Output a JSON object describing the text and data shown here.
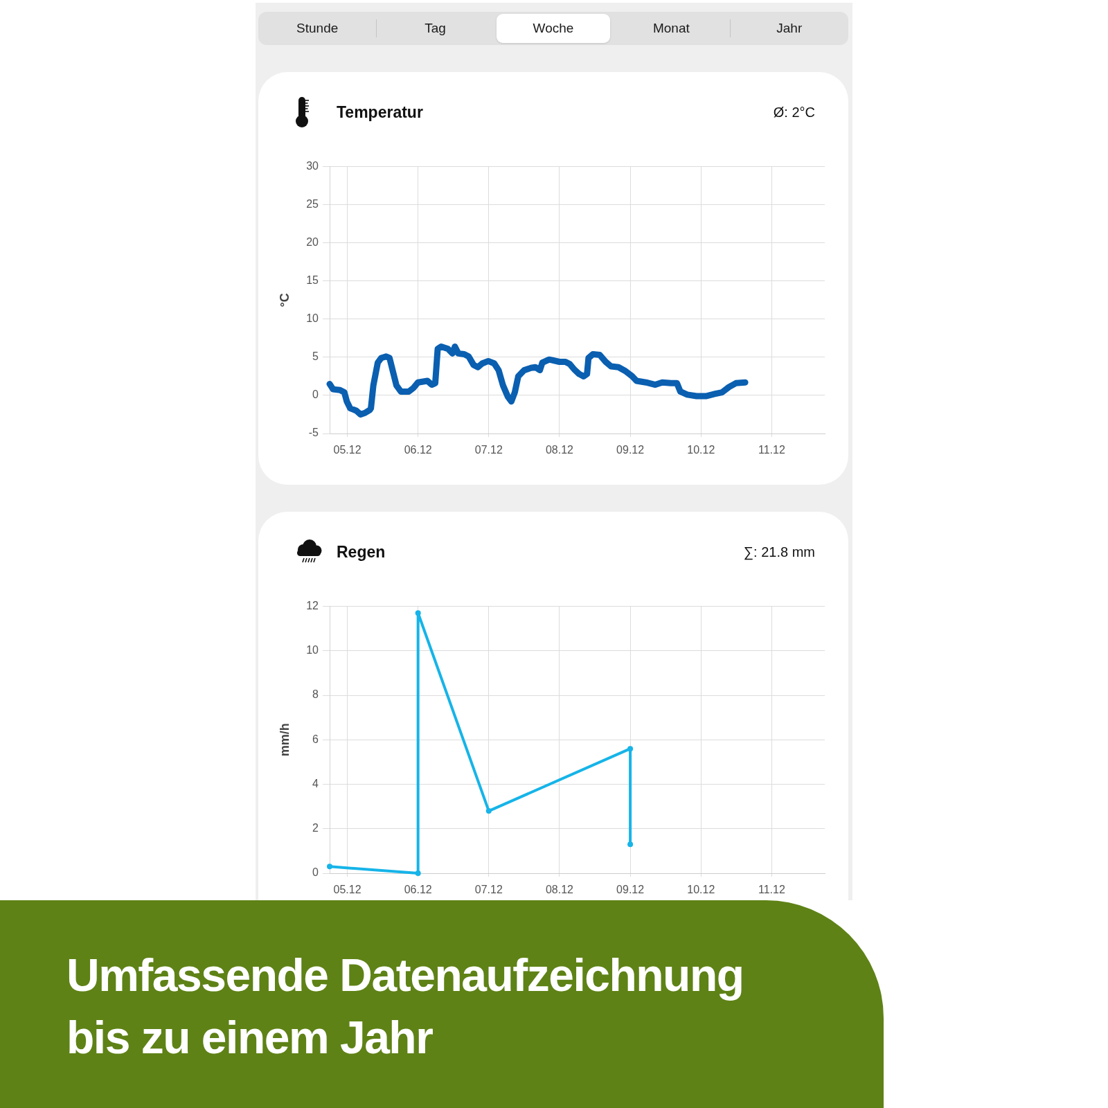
{
  "chart_data": [
    {
      "type": "line",
      "title": "Temperatur",
      "ylabel": "°C",
      "annotations": [
        "Stunde",
        "Tag",
        "Woche",
        "Monat",
        "Jahr",
        "Ø: 2°C"
      ],
      "x": [
        "--12-04T18:00",
        "--12-04T19:10",
        "--12-04T21:30",
        "--12-04T23:00",
        "--12-04T23:50",
        "--12-05T01:00",
        "--12-05T03:00",
        "--12-05T04:30",
        "--12-05T06:00",
        "--12-05T07:40",
        "--12-05T08:00",
        "--12-05T08:50",
        "--12-05T10:20",
        "--12-05T11:30",
        "--12-05T13:10",
        "--12-05T14:20",
        "--12-05T15:30",
        "--12-05T16:40",
        "--12-05T18:10",
        "--12-05T20:50",
        "--12-05T22:30",
        "--12-06T00:00",
        "--12-06T03:10",
        "--12-06T04:40",
        "--12-06T05:50",
        "--12-06T06:40",
        "--12-06T07:50",
        "--12-06T10:10",
        "--12-06T11:40",
        "--12-06T12:30",
        "--12-06T13:40",
        "--12-06T15:40",
        "--12-06T17:10",
        "--12-06T18:50",
        "--12-06T20:20",
        "--12-06T21:50",
        "--12-06T23:50",
        "--12-07T01:50",
        "--12-07T03:20",
        "--12-07T04:50",
        "--12-07T06:30",
        "--12-07T07:40",
        "--12-07T08:50",
        "--12-07T10:00",
        "--12-07T12:00",
        "--12-07T14:20",
        "--12-07T15:50",
        "--12-07T17:20",
        "--12-07T18:10",
        "--12-07T20:30",
        "--12-08T00:00",
        "--12-08T02:00",
        "--12-08T03:30",
        "--12-08T05:00",
        "--12-08T06:40",
        "--12-08T08:10",
        "--12-08T09:20",
        "--12-08T09:50",
        "--12-08T11:20",
        "--12-08T13:40",
        "--12-08T15:40",
        "--12-08T17:30",
        "--12-08T20:00",
        "--12-08T22:20",
        "--12-09T00:40",
        "--12-09T02:10",
        "--12-09T05:20",
        "--12-09T08:30",
        "--12-09T10:50",
        "--12-09T13:50",
        "--12-09T15:50",
        "--12-09T17:00",
        "--12-09T19:20",
        "--12-09T22:30",
        "--12-10T01:40",
        "--12-10T04:50",
        "--12-10T07:10",
        "--12-10T09:30",
        "--12-10T11:50",
        "--12-10T15:00"
      ],
      "values": [
        1.5,
        0.8,
        0.7,
        0.4,
        -0.8,
        -1.7,
        -2.0,
        -2.5,
        -2.3,
        -1.9,
        -1.7,
        1.3,
        4.3,
        4.9,
        5.1,
        4.9,
        3.1,
        1.3,
        0.5,
        0.5,
        1.0,
        1.7,
        1.9,
        1.4,
        1.6,
        6.1,
        6.4,
        6.1,
        5.5,
        6.4,
        5.5,
        5.4,
        5.1,
        4.0,
        3.7,
        4.2,
        4.5,
        4.2,
        3.3,
        1.3,
        -0.2,
        -0.8,
        0.4,
        2.5,
        3.3,
        3.6,
        3.7,
        3.3,
        4.3,
        4.7,
        4.4,
        4.4,
        4.1,
        3.4,
        2.8,
        2.5,
        2.8,
        4.9,
        5.4,
        5.3,
        4.4,
        3.8,
        3.7,
        3.2,
        2.5,
        1.9,
        1.7,
        1.4,
        1.7,
        1.6,
        1.6,
        0.5,
        0.1,
        -0.1,
        -0.1,
        0.2,
        0.4,
        1.1,
        1.6,
        1.7
      ],
      "color": "#0a5fb0",
      "xlim": [
        "--12-04T18:00",
        "--12-11T18:00"
      ],
      "xticks": [
        {
          "value": "--12-05",
          "label": "05.12"
        },
        {
          "value": "--12-06",
          "label": "06.12"
        },
        {
          "value": "--12-07",
          "label": "07.12"
        },
        {
          "value": "--12-08",
          "label": "08.12"
        },
        {
          "value": "--12-09",
          "label": "09.12"
        },
        {
          "value": "--12-10",
          "label": "10.12"
        },
        {
          "value": "--12-11",
          "label": "11.12"
        }
      ],
      "ylim": [
        -5,
        30
      ],
      "yticks": [
        -5,
        0,
        5,
        10,
        15,
        20,
        25,
        30
      ],
      "grid": true
    },
    {
      "type": "line",
      "title": "Regen",
      "ylabel": "mm/h",
      "annotations": [
        "∑: 21.8 mm",
        "Umfassende Datenaufzeichnung bis zu einem Jahr"
      ],
      "x": [
        "--12-04T18:00",
        "--12-06T00:00",
        "--12-06T00:00",
        "--12-07T00:00",
        "--12-09T00:00",
        "--12-09T00:00"
      ],
      "values": [
        0.3,
        0,
        11.7,
        2.8,
        5.6,
        1.3
      ],
      "color": "#16b4e8",
      "marker": "circle",
      "xlim": [
        "--12-04T18:00",
        "--12-11T18:00"
      ],
      "xticks": [
        {
          "value": "--12-05",
          "label": "05.12"
        },
        {
          "value": "--12-06",
          "label": "06.12"
        },
        {
          "value": "--12-07",
          "label": "07.12"
        },
        {
          "value": "--12-08",
          "label": "08.12"
        },
        {
          "value": "--12-09",
          "label": "09.12"
        },
        {
          "value": "--12-10",
          "label": "10.12"
        },
        {
          "value": "--12-11",
          "label": "11.12"
        }
      ],
      "ylim": [
        0,
        12
      ],
      "yticks": [
        0,
        2,
        4,
        6,
        8,
        10,
        12
      ],
      "grid": true
    }
  ]
}
